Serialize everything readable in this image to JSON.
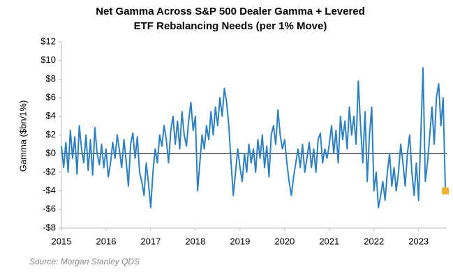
{
  "chart_data": {
    "type": "line",
    "title": [
      "Net Gamma Across S&P 500 Dealer Gamma + Levered",
      "ETF Rebalancing Needs (per 1% Move)"
    ],
    "ylabel": "Gamma ($bn/1%)",
    "source": "Source: Morgan Stanley QDS",
    "xlim": [
      2015,
      2023.63
    ],
    "xticks": [
      2015,
      2016,
      2017,
      2018,
      2019,
      2020,
      2021,
      2022,
      2023
    ],
    "ylim": [
      -8,
      12
    ],
    "yticks": [
      {
        "value": -8,
        "label": "-$8"
      },
      {
        "value": -6,
        "label": "-$6"
      },
      {
        "value": -4,
        "label": "-$4"
      },
      {
        "value": -2,
        "label": "-$2"
      },
      {
        "value": 0,
        "label": "$0"
      },
      {
        "value": 2,
        "label": "$2"
      },
      {
        "value": 4,
        "label": "$4"
      },
      {
        "value": 6,
        "label": "$6"
      },
      {
        "value": 8,
        "label": "$8"
      },
      {
        "value": 10,
        "label": "$10"
      },
      {
        "value": 12,
        "label": "$12"
      }
    ],
    "zero_line_color": "#000000",
    "last_point_color": "#f2b134",
    "series": [
      {
        "color": "#2f80c3",
        "x": [
          2015,
          2015.05,
          2015.1,
          2015.15,
          2015.2,
          2015.25,
          2015.3,
          2015.35,
          2015.4,
          2015.45,
          2015.5,
          2015.55,
          2015.6,
          2015.65,
          2015.7,
          2015.75,
          2015.8,
          2015.85,
          2015.9,
          2015.95,
          2016,
          2016.05,
          2016.1,
          2016.15,
          2016.2,
          2016.25,
          2016.3,
          2016.35,
          2016.4,
          2016.45,
          2016.5,
          2016.55,
          2016.6,
          2016.65,
          2016.7,
          2016.75,
          2016.8,
          2016.85,
          2016.9,
          2016.95,
          2017,
          2017.05,
          2017.1,
          2017.15,
          2017.2,
          2017.25,
          2017.3,
          2017.35,
          2017.4,
          2017.45,
          2017.5,
          2017.55,
          2017.6,
          2017.65,
          2017.7,
          2017.75,
          2017.8,
          2017.85,
          2017.9,
          2017.95,
          2018,
          2018.05,
          2018.1,
          2018.15,
          2018.2,
          2018.25,
          2018.3,
          2018.35,
          2018.4,
          2018.45,
          2018.5,
          2018.55,
          2018.6,
          2018.65,
          2018.7,
          2018.75,
          2018.8,
          2018.85,
          2018.9,
          2018.95,
          2019,
          2019.05,
          2019.1,
          2019.15,
          2019.2,
          2019.25,
          2019.3,
          2019.35,
          2019.4,
          2019.45,
          2019.5,
          2019.55,
          2019.6,
          2019.65,
          2019.7,
          2019.75,
          2019.8,
          2019.85,
          2019.9,
          2019.95,
          2020,
          2020.05,
          2020.1,
          2020.15,
          2020.2,
          2020.25,
          2020.3,
          2020.35,
          2020.4,
          2020.45,
          2020.5,
          2020.55,
          2020.6,
          2020.65,
          2020.7,
          2020.75,
          2020.8,
          2020.85,
          2020.9,
          2020.95,
          2021,
          2021.05,
          2021.1,
          2021.15,
          2021.2,
          2021.25,
          2021.3,
          2021.35,
          2021.4,
          2021.45,
          2021.5,
          2021.55,
          2021.6,
          2021.65,
          2021.7,
          2021.75,
          2021.8,
          2021.85,
          2021.9,
          2021.95,
          2022,
          2022.05,
          2022.1,
          2022.15,
          2022.2,
          2022.25,
          2022.3,
          2022.35,
          2022.4,
          2022.45,
          2022.5,
          2022.55,
          2022.6,
          2022.65,
          2022.7,
          2022.75,
          2022.8,
          2022.85,
          2022.9,
          2022.95,
          2023,
          2023.05,
          2023.1,
          2023.15,
          2023.2,
          2023.25,
          2023.3,
          2023.35,
          2023.4,
          2023.45,
          2023.5,
          2023.55,
          2023.6
        ],
        "values": [
          0.8,
          -1.5,
          1.2,
          -2,
          2.5,
          -0.5,
          1.8,
          -2.2,
          3,
          0.5,
          -1,
          2,
          -1.8,
          1.5,
          -2.3,
          2.8,
          0,
          -1.2,
          1,
          -1.5,
          0.5,
          -2.5,
          -1,
          1.2,
          -0.5,
          2,
          0.3,
          -1.5,
          1.5,
          -0.8,
          -3.5,
          1,
          2.2,
          -0.5,
          1.8,
          -2,
          -3,
          -4.5,
          -1,
          -3.2,
          -5.8,
          -2,
          0.5,
          -1,
          2,
          0.8,
          3,
          1.5,
          -1,
          2.5,
          4,
          1,
          3.5,
          0.5,
          4.5,
          2,
          0.8,
          3.5,
          5.5,
          2.5,
          4,
          -4,
          -1,
          2,
          0.5,
          3,
          1.5,
          4.5,
          2,
          5,
          3,
          6,
          4,
          7,
          5.5,
          3,
          -1,
          -4.5,
          -2,
          0.5,
          -1.5,
          -3,
          0,
          -2,
          1,
          -1,
          0.5,
          -2,
          1.5,
          -0.5,
          2,
          -1.5,
          0.8,
          -2.5,
          2,
          3,
          1,
          4.7,
          2,
          0.5,
          1.5,
          -1,
          -3,
          -4.5,
          -2.5,
          -1,
          0.5,
          -1.5,
          1,
          -2,
          -0.5,
          1.2,
          -1.5,
          0.5,
          -2,
          1.5,
          2.2,
          -1,
          0.5,
          -0.5,
          1,
          3,
          0,
          2.5,
          -1,
          4,
          1.5,
          3.5,
          0.5,
          5,
          2,
          4,
          1,
          7.8,
          3,
          -1,
          4.5,
          -3,
          2,
          5,
          -4,
          -2,
          -5.8,
          -4.5,
          -3,
          -5,
          -2,
          0,
          -3.5,
          -1.5,
          -4,
          -2,
          1,
          -1,
          -3.5,
          0,
          2,
          -2,
          -4.5,
          -1,
          -5,
          2,
          9.2,
          -3,
          -1,
          2,
          5,
          1,
          6,
          7.5,
          3,
          6,
          -4
        ]
      }
    ]
  }
}
